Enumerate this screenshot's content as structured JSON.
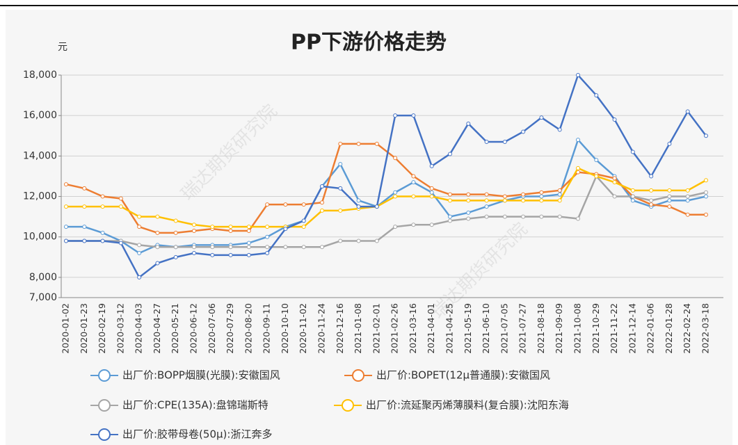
{
  "chart_data": {
    "type": "line",
    "title": "PP下游价格走势",
    "y_unit": "元",
    "watermark": "瑞达期货研究院",
    "categories": [
      "2020-01-02",
      "2020-01-23",
      "2020-02-19",
      "2020-03-12",
      "2020-04-03",
      "2020-04-27",
      "2020-05-21",
      "2020-06-12",
      "2020-07-06",
      "2020-07-29",
      "2020-08-20",
      "2020-09-11",
      "2020-10-10",
      "2020-11-02",
      "2020-11-24",
      "2020-12-16",
      "2021-01-08",
      "2021-02-01",
      "2021-02-26",
      "2021-03-16",
      "2021-04-01",
      "2021-04-25",
      "2021-05-19",
      "2021-06-10",
      "2021-07-05",
      "2021-07-27",
      "2021-08-18",
      "2021-09-09",
      "2021-10-08",
      "2021-10-29",
      "2021-11-22",
      "2021-12-14",
      "2022-01-06",
      "2022-01-28",
      "2022-02-24",
      "2022-03-18"
    ],
    "series": [
      {
        "name": "出厂价:BOPP烟膜(光膜):安徽国风",
        "color": "#5b9bd5",
        "values": [
          10500,
          10500,
          10200,
          9800,
          9200,
          9600,
          9500,
          9600,
          9600,
          9600,
          9700,
          10000,
          10500,
          10800,
          12500,
          13600,
          11800,
          11500,
          12200,
          12700,
          12200,
          11000,
          11200,
          11500,
          11800,
          12000,
          12000,
          12100,
          14800,
          13800,
          13000,
          11800,
          11500,
          11800,
          11800,
          12000
        ]
      },
      {
        "name": "出厂价:BOPET(12μ普通膜):安徽国风",
        "color": "#ed7d31",
        "values": [
          12600,
          12400,
          12000,
          11900,
          10500,
          10200,
          10200,
          10300,
          10400,
          10300,
          10300,
          11600,
          11600,
          11600,
          11700,
          14600,
          14600,
          14600,
          13900,
          13000,
          12400,
          12100,
          12100,
          12100,
          12000,
          12100,
          12200,
          12300,
          13200,
          13100,
          12900,
          12000,
          11600,
          11500,
          11100,
          11100
        ]
      },
      {
        "name": "出厂价:CPE(135A):盘锦瑞斯特",
        "color": "#a5a5a5",
        "values": [
          9800,
          9800,
          9800,
          9800,
          9600,
          9500,
          9500,
          9500,
          9500,
          9500,
          9500,
          9500,
          9500,
          9500,
          9500,
          9800,
          9800,
          9800,
          10500,
          10600,
          10600,
          10800,
          10900,
          11000,
          11000,
          11000,
          11000,
          11000,
          10900,
          13000,
          12000,
          12000,
          11800,
          12000,
          12000,
          12200
        ]
      },
      {
        "name": "出厂价:流延聚丙烯薄膜料(复合膜):沈阳东海",
        "color": "#ffc000",
        "values": [
          11500,
          11500,
          11500,
          11500,
          11000,
          11000,
          10800,
          10600,
          10500,
          10500,
          10500,
          10500,
          10500,
          10500,
          11300,
          11300,
          11400,
          11500,
          12000,
          12000,
          12000,
          11800,
          11800,
          11800,
          11800,
          11800,
          11800,
          11800,
          13400,
          13000,
          12700,
          12300,
          12300,
          12300,
          12300,
          12800
        ]
      },
      {
        "name": "出厂价:胶带母卷(50μ):浙江奔多",
        "color": "#4472c4",
        "values": [
          9800,
          9800,
          9800,
          9700,
          8000,
          8700,
          9000,
          9200,
          9100,
          9100,
          9100,
          9200,
          10400,
          10800,
          12500,
          12400,
          11500,
          11500,
          16000,
          16000,
          13500,
          14100,
          15600,
          14700,
          14700,
          15200,
          15900,
          15300,
          18000,
          17000,
          15800,
          14200,
          13000,
          14600,
          16200,
          15000
        ]
      }
    ],
    "ylim": [
      7000,
      18000
    ],
    "yticks": [
      {
        "value": 7000,
        "label": "7,000"
      },
      {
        "value": 8000,
        "label": "8,000"
      },
      {
        "value": 10000,
        "label": "10,000"
      },
      {
        "value": 12000,
        "label": "12,000"
      },
      {
        "value": 14000,
        "label": "14,000"
      },
      {
        "value": 16000,
        "label": "16,000"
      },
      {
        "value": 18000,
        "label": "18,000"
      }
    ],
    "grid": true
  }
}
